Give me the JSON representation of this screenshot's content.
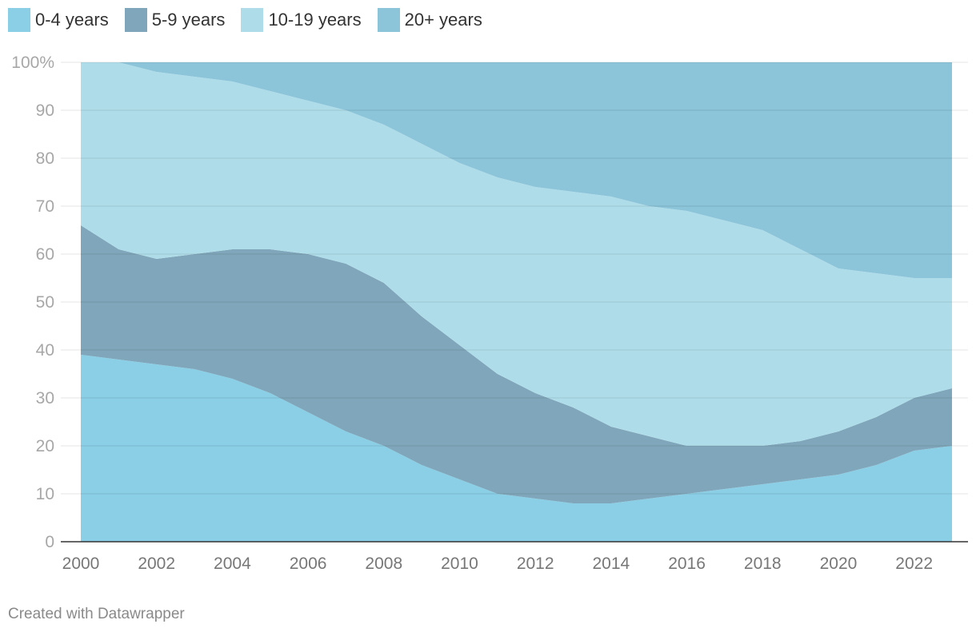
{
  "chart_data": {
    "type": "area",
    "stacked": true,
    "normalized_percent": true,
    "x": [
      2000,
      2001,
      2002,
      2003,
      2004,
      2005,
      2006,
      2007,
      2008,
      2009,
      2010,
      2011,
      2012,
      2013,
      2014,
      2015,
      2016,
      2017,
      2018,
      2019,
      2020,
      2021,
      2022,
      2023
    ],
    "series": [
      {
        "name": "0-4 years",
        "color": "#8bcfe6",
        "values": [
          39,
          38,
          37,
          36,
          34,
          31,
          27,
          23,
          20,
          16,
          13,
          10,
          9,
          8,
          8,
          9,
          10,
          11,
          12,
          13,
          14,
          16,
          19,
          20
        ]
      },
      {
        "name": "5-9 years",
        "color": "#7fa6ba",
        "values": [
          27,
          23,
          22,
          24,
          27,
          30,
          33,
          35,
          34,
          31,
          28,
          25,
          22,
          20,
          16,
          13,
          10,
          9,
          8,
          8,
          9,
          10,
          11,
          12
        ]
      },
      {
        "name": "10-19 years",
        "color": "#aedde9",
        "values": [
          34,
          39,
          39,
          37,
          35,
          33,
          32,
          32,
          33,
          36,
          38,
          41,
          43,
          45,
          48,
          48,
          49,
          47,
          45,
          40,
          34,
          30,
          25,
          23
        ]
      },
      {
        "name": "20+ years",
        "color": "#8cc4da",
        "values": [
          0,
          0,
          2,
          3,
          4,
          6,
          8,
          10,
          13,
          17,
          21,
          24,
          26,
          27,
          28,
          30,
          31,
          33,
          35,
          39,
          43,
          44,
          45,
          45
        ]
      }
    ],
    "y_ticks": [
      "0",
      "10",
      "20",
      "30",
      "40",
      "50",
      "60",
      "70",
      "80",
      "90",
      "100%"
    ],
    "x_ticks": [
      "2000",
      "2002",
      "2004",
      "2006",
      "2008",
      "2010",
      "2012",
      "2014",
      "2016",
      "2018",
      "2020",
      "2022"
    ],
    "ylim": [
      0,
      100
    ],
    "xlim": [
      2000,
      2023
    ],
    "grid": true,
    "legend_position": "top-left",
    "title": "",
    "xlabel": "",
    "ylabel": ""
  },
  "footer": {
    "credit": "Created with Datawrapper"
  }
}
